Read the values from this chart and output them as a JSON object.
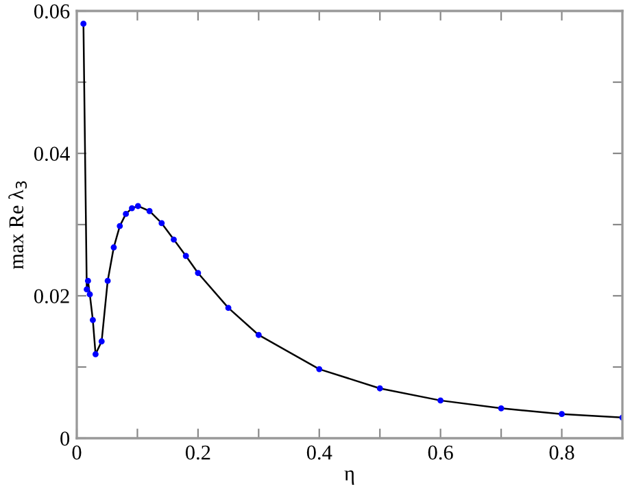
{
  "chart_data": {
    "type": "line",
    "xlabel": "η",
    "ylabel": "max Re λ$_{3}$",
    "x": [
      0.011,
      0.0165,
      0.0185,
      0.0215,
      0.0265,
      0.031,
      0.041,
      0.051,
      0.061,
      0.071,
      0.081,
      0.091,
      0.101,
      0.12,
      0.14,
      0.16,
      0.18,
      0.2,
      0.25,
      0.3,
      0.4,
      0.5,
      0.6,
      0.7,
      0.8,
      0.9
    ],
    "series": [
      {
        "color": "#0000ff",
        "values": [
          0.0582,
          0.0209,
          0.0221,
          0.0202,
          0.0166,
          0.0118,
          0.0136,
          0.0221,
          0.0268,
          0.0298,
          0.0315,
          0.0323,
          0.0326,
          0.0319,
          0.0302,
          0.0279,
          0.0256,
          0.0232,
          0.0183,
          0.0145,
          0.0097,
          0.007,
          0.0053,
          0.0042,
          0.0034,
          0.0029
        ]
      }
    ],
    "xlim": [
      0,
      0.9
    ],
    "ylim": [
      0,
      0.06
    ],
    "xticks": [
      0,
      {
        "value": 0.1,
        "label": null
      },
      0.2,
      {
        "value": 0.3,
        "label": null
      },
      0.4,
      {
        "value": 0.5,
        "label": null
      },
      0.6,
      {
        "value": 0.7,
        "label": null
      },
      0.8
    ],
    "yticks": [
      0,
      {
        "value": 0.01,
        "label": null
      },
      0.02,
      {
        "value": 0.03,
        "label": null
      },
      0.04,
      {
        "value": 0.05,
        "label": null
      },
      0.06
    ],
    "marker": "circle",
    "line_style": "solid",
    "grid": false,
    "legend": false
  }
}
